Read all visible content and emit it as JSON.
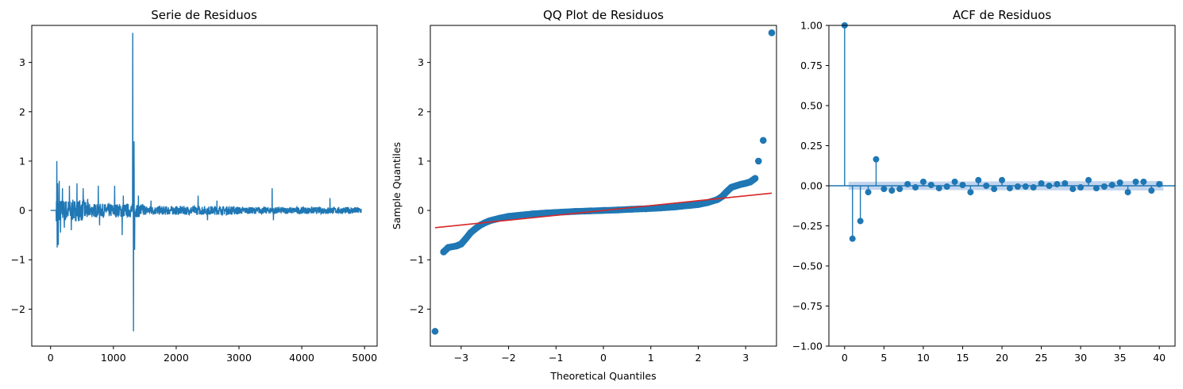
{
  "colors": {
    "series": "#1f77b4",
    "fit_line": "#d62728",
    "conf_band": "#aec7e8",
    "spine": "#000000"
  },
  "chart_data": [
    {
      "type": "line",
      "title": "Serie de Residuos",
      "xlabel": "",
      "ylabel": "",
      "xlim": [
        -300,
        5200
      ],
      "ylim": [
        -2.75,
        3.75
      ],
      "xticks": [
        0,
        1000,
        2000,
        3000,
        4000,
        5000
      ],
      "xtick_labels": [
        "0",
        "1000",
        "2000",
        "3000",
        "4000",
        "5000"
      ],
      "yticks": [
        -2,
        -1,
        0,
        1,
        2,
        3
      ],
      "ytick_labels": [
        "−2",
        "−1",
        "0",
        "1",
        "2",
        "3"
      ],
      "n_points": 4950,
      "flat_until": 90,
      "spikes": [
        {
          "x": 100,
          "y": 1.0
        },
        {
          "x": 105,
          "y": -0.75
        },
        {
          "x": 115,
          "y": 0.55
        },
        {
          "x": 125,
          "y": -0.7
        },
        {
          "x": 140,
          "y": 0.6
        },
        {
          "x": 160,
          "y": -0.45
        },
        {
          "x": 190,
          "y": 0.45
        },
        {
          "x": 220,
          "y": -0.35
        },
        {
          "x": 300,
          "y": 0.5
        },
        {
          "x": 330,
          "y": -0.4
        },
        {
          "x": 420,
          "y": 0.55
        },
        {
          "x": 520,
          "y": 0.45
        },
        {
          "x": 760,
          "y": 0.5
        },
        {
          "x": 780,
          "y": -0.3
        },
        {
          "x": 1020,
          "y": 0.5
        },
        {
          "x": 1140,
          "y": -0.5
        },
        {
          "x": 1160,
          "y": 0.3
        },
        {
          "x": 1310,
          "y": 3.6
        },
        {
          "x": 1320,
          "y": -2.45
        },
        {
          "x": 1330,
          "y": 1.4
        },
        {
          "x": 1340,
          "y": -0.8
        },
        {
          "x": 1400,
          "y": 0.3
        },
        {
          "x": 1600,
          "y": 0.2
        },
        {
          "x": 2350,
          "y": 0.3
        },
        {
          "x": 2500,
          "y": -0.2
        },
        {
          "x": 2650,
          "y": 0.2
        },
        {
          "x": 3530,
          "y": 0.45
        },
        {
          "x": 3550,
          "y": -0.2
        },
        {
          "x": 4450,
          "y": 0.25
        }
      ]
    },
    {
      "type": "scatter",
      "title": "QQ Plot de Residuos",
      "xlabel": "Theoretical Quantiles",
      "ylabel": "Sample Quantiles",
      "xlim": [
        -3.65,
        3.65
      ],
      "ylim": [
        -2.75,
        3.75
      ],
      "xticks": [
        -3,
        -2,
        -1,
        0,
        1,
        2,
        3
      ],
      "xtick_labels": [
        "−3",
        "−2",
        "−1",
        "0",
        "1",
        "2",
        "3"
      ],
      "yticks": [
        -2,
        -1,
        0,
        1,
        2,
        3
      ],
      "ytick_labels": [
        "−2",
        "−1",
        "0",
        "1",
        "2",
        "3"
      ],
      "fit_line": {
        "x": [
          -3.55,
          3.55
        ],
        "y": [
          -0.35,
          0.35
        ]
      },
      "points": [
        {
          "x": -3.55,
          "y": -2.45
        },
        {
          "x": -3.37,
          "y": -0.84
        },
        {
          "x": -3.27,
          "y": -0.75
        },
        {
          "x": -3.1,
          "y": -0.72
        },
        {
          "x": -3.0,
          "y": -0.68
        },
        {
          "x": -2.9,
          "y": -0.57
        },
        {
          "x": -2.8,
          "y": -0.45
        },
        {
          "x": -2.7,
          "y": -0.37
        },
        {
          "x": -2.6,
          "y": -0.3
        },
        {
          "x": -2.5,
          "y": -0.25
        },
        {
          "x": -2.4,
          "y": -0.21
        },
        {
          "x": -2.2,
          "y": -0.16
        },
        {
          "x": -2.0,
          "y": -0.12
        },
        {
          "x": -1.8,
          "y": -0.1
        },
        {
          "x": -1.5,
          "y": -0.07
        },
        {
          "x": -1.2,
          "y": -0.05
        },
        {
          "x": -0.9,
          "y": -0.035
        },
        {
          "x": -0.6,
          "y": -0.02
        },
        {
          "x": -0.3,
          "y": -0.01
        },
        {
          "x": 0.0,
          "y": 0.0
        },
        {
          "x": 0.3,
          "y": 0.01
        },
        {
          "x": 0.6,
          "y": 0.025
        },
        {
          "x": 0.9,
          "y": 0.035
        },
        {
          "x": 1.2,
          "y": 0.05
        },
        {
          "x": 1.5,
          "y": 0.07
        },
        {
          "x": 1.8,
          "y": 0.1
        },
        {
          "x": 2.0,
          "y": 0.12
        },
        {
          "x": 2.2,
          "y": 0.16
        },
        {
          "x": 2.4,
          "y": 0.22
        },
        {
          "x": 2.5,
          "y": 0.28
        },
        {
          "x": 2.6,
          "y": 0.38
        },
        {
          "x": 2.7,
          "y": 0.47
        },
        {
          "x": 2.8,
          "y": 0.5
        },
        {
          "x": 2.9,
          "y": 0.53
        },
        {
          "x": 3.0,
          "y": 0.55
        },
        {
          "x": 3.1,
          "y": 0.58
        },
        {
          "x": 3.2,
          "y": 0.65
        },
        {
          "x": 3.27,
          "y": 1.0
        },
        {
          "x": 3.37,
          "y": 1.42
        },
        {
          "x": 3.55,
          "y": 3.6
        }
      ]
    },
    {
      "type": "stem",
      "title": "ACF de Residuos",
      "xlabel": "",
      "ylabel": "",
      "xlim": [
        -2,
        42
      ],
      "ylim": [
        -1.0,
        1.0
      ],
      "xticks": [
        0,
        5,
        10,
        15,
        20,
        25,
        30,
        35,
        40
      ],
      "xtick_labels": [
        "0",
        "5",
        "10",
        "15",
        "20",
        "25",
        "30",
        "35",
        "40"
      ],
      "yticks": [
        -1.0,
        -0.75,
        -0.5,
        -0.25,
        0.0,
        0.25,
        0.5,
        0.75,
        1.0
      ],
      "ytick_labels": [
        "−1.00",
        "−0.75",
        "−0.50",
        "−0.25",
        "0.00",
        "0.25",
        "0.50",
        "0.75",
        "1.00"
      ],
      "lags": [
        0,
        1,
        2,
        3,
        4,
        5,
        6,
        7,
        8,
        9,
        10,
        11,
        12,
        13,
        14,
        15,
        16,
        17,
        18,
        19,
        20,
        21,
        22,
        23,
        24,
        25,
        26,
        27,
        28,
        29,
        30,
        31,
        32,
        33,
        34,
        35,
        36,
        37,
        38,
        39,
        40
      ],
      "acf": [
        1.0,
        -0.33,
        -0.22,
        -0.04,
        0.165,
        -0.02,
        -0.03,
        -0.02,
        0.01,
        -0.01,
        0.025,
        0.005,
        -0.015,
        -0.005,
        0.025,
        0.005,
        -0.04,
        0.035,
        0.0,
        -0.02,
        0.035,
        -0.015,
        -0.005,
        -0.005,
        -0.01,
        0.015,
        0.0,
        0.01,
        0.015,
        -0.02,
        -0.01,
        0.035,
        -0.015,
        -0.005,
        0.005,
        0.02,
        -0.04,
        0.025,
        0.025,
        -0.03,
        0.01
      ],
      "conf_band": {
        "x": [
          0.5,
          40.5
        ],
        "upper_start": 0.025,
        "upper_end": 0.03,
        "lower_start": -0.025,
        "lower_end": -0.03
      }
    }
  ]
}
